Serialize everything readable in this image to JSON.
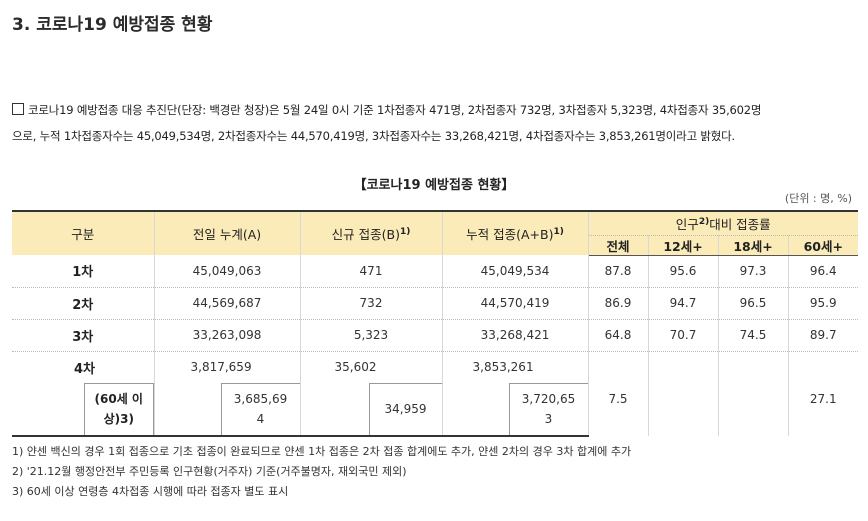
{
  "heading": "3. 코로나19 예방접종 현황",
  "paragraph": {
    "line1": "코로나19 예방접종 대응 추진단(단장: 백경란 청장)은 5월 24일 0시 기준 1차접종자 471명, 2차접종자 732명, 3차접종자 5,323명, 4차접종자 35,602명",
    "line2": "으로, 누적 1차접종자수는 45,049,534명, 2차접종자수는 44,570,419명, 3차접종자수는 33,268,421명, 4차접종자수는 3,853,261명이라고 밝혔다."
  },
  "table_title": "【코로나19 예방접종 현황】",
  "unit": "(단위 : 명, %)",
  "headers": {
    "category": "구분",
    "prev_cum": "전일 누계(A)",
    "new": "신규 접종(B)",
    "new_sup": "1)",
    "cum": "누적 접종(A+B)",
    "cum_sup": "1)",
    "rate_pre": "인구",
    "rate_sup": "2)",
    "rate_post": "대비 접종률",
    "all": "전체",
    "age12": "12세+",
    "age18": "18세+",
    "age60": "60세+"
  },
  "rows": [
    {
      "label": "1차",
      "prev": "45,049,063",
      "new": "471",
      "cum": "45,049,534",
      "all": "87.8",
      "age12": "95.6",
      "age18": "97.3",
      "age60": "96.4"
    },
    {
      "label": "2차",
      "prev": "44,569,687",
      "new": "732",
      "cum": "44,570,419",
      "all": "86.9",
      "age12": "94.7",
      "age18": "96.5",
      "age60": "95.9"
    },
    {
      "label": "3차",
      "prev": "33,263,098",
      "new": "5,323",
      "cum": "33,268,421",
      "all": "64.8",
      "age12": "70.7",
      "age18": "74.5",
      "age60": "89.7"
    }
  ],
  "row4": {
    "label": "4차",
    "prev": "3,817,659",
    "new": "35,602",
    "cum": "3,853,261",
    "all": "7.5",
    "age60": "27.1",
    "sub_label_a": "(60세 이",
    "sub_label_b": "상)",
    "sub_label_sup": "3)",
    "sub_prev_a": "3,685,69",
    "sub_prev_b": "4",
    "sub_new": "34,959",
    "sub_cum_a": "3,720,65",
    "sub_cum_b": "3"
  },
  "notes": [
    "1) 얀센 백신의 경우 1회 접종으로 기초 접종이 완료되므로 얀센 1차 접종은 2차 접종 합계에도 추가, 얀센 2차의 경우 3차 합계에 추가",
    "2) '21.12월 행정안전부 주민등록 인구현황(거주자) 기준(거주불명자, 재외국민 제외)",
    "3) 60세 이상 연령층 4차접종 시행에 따라 접종자 별도 표시"
  ]
}
